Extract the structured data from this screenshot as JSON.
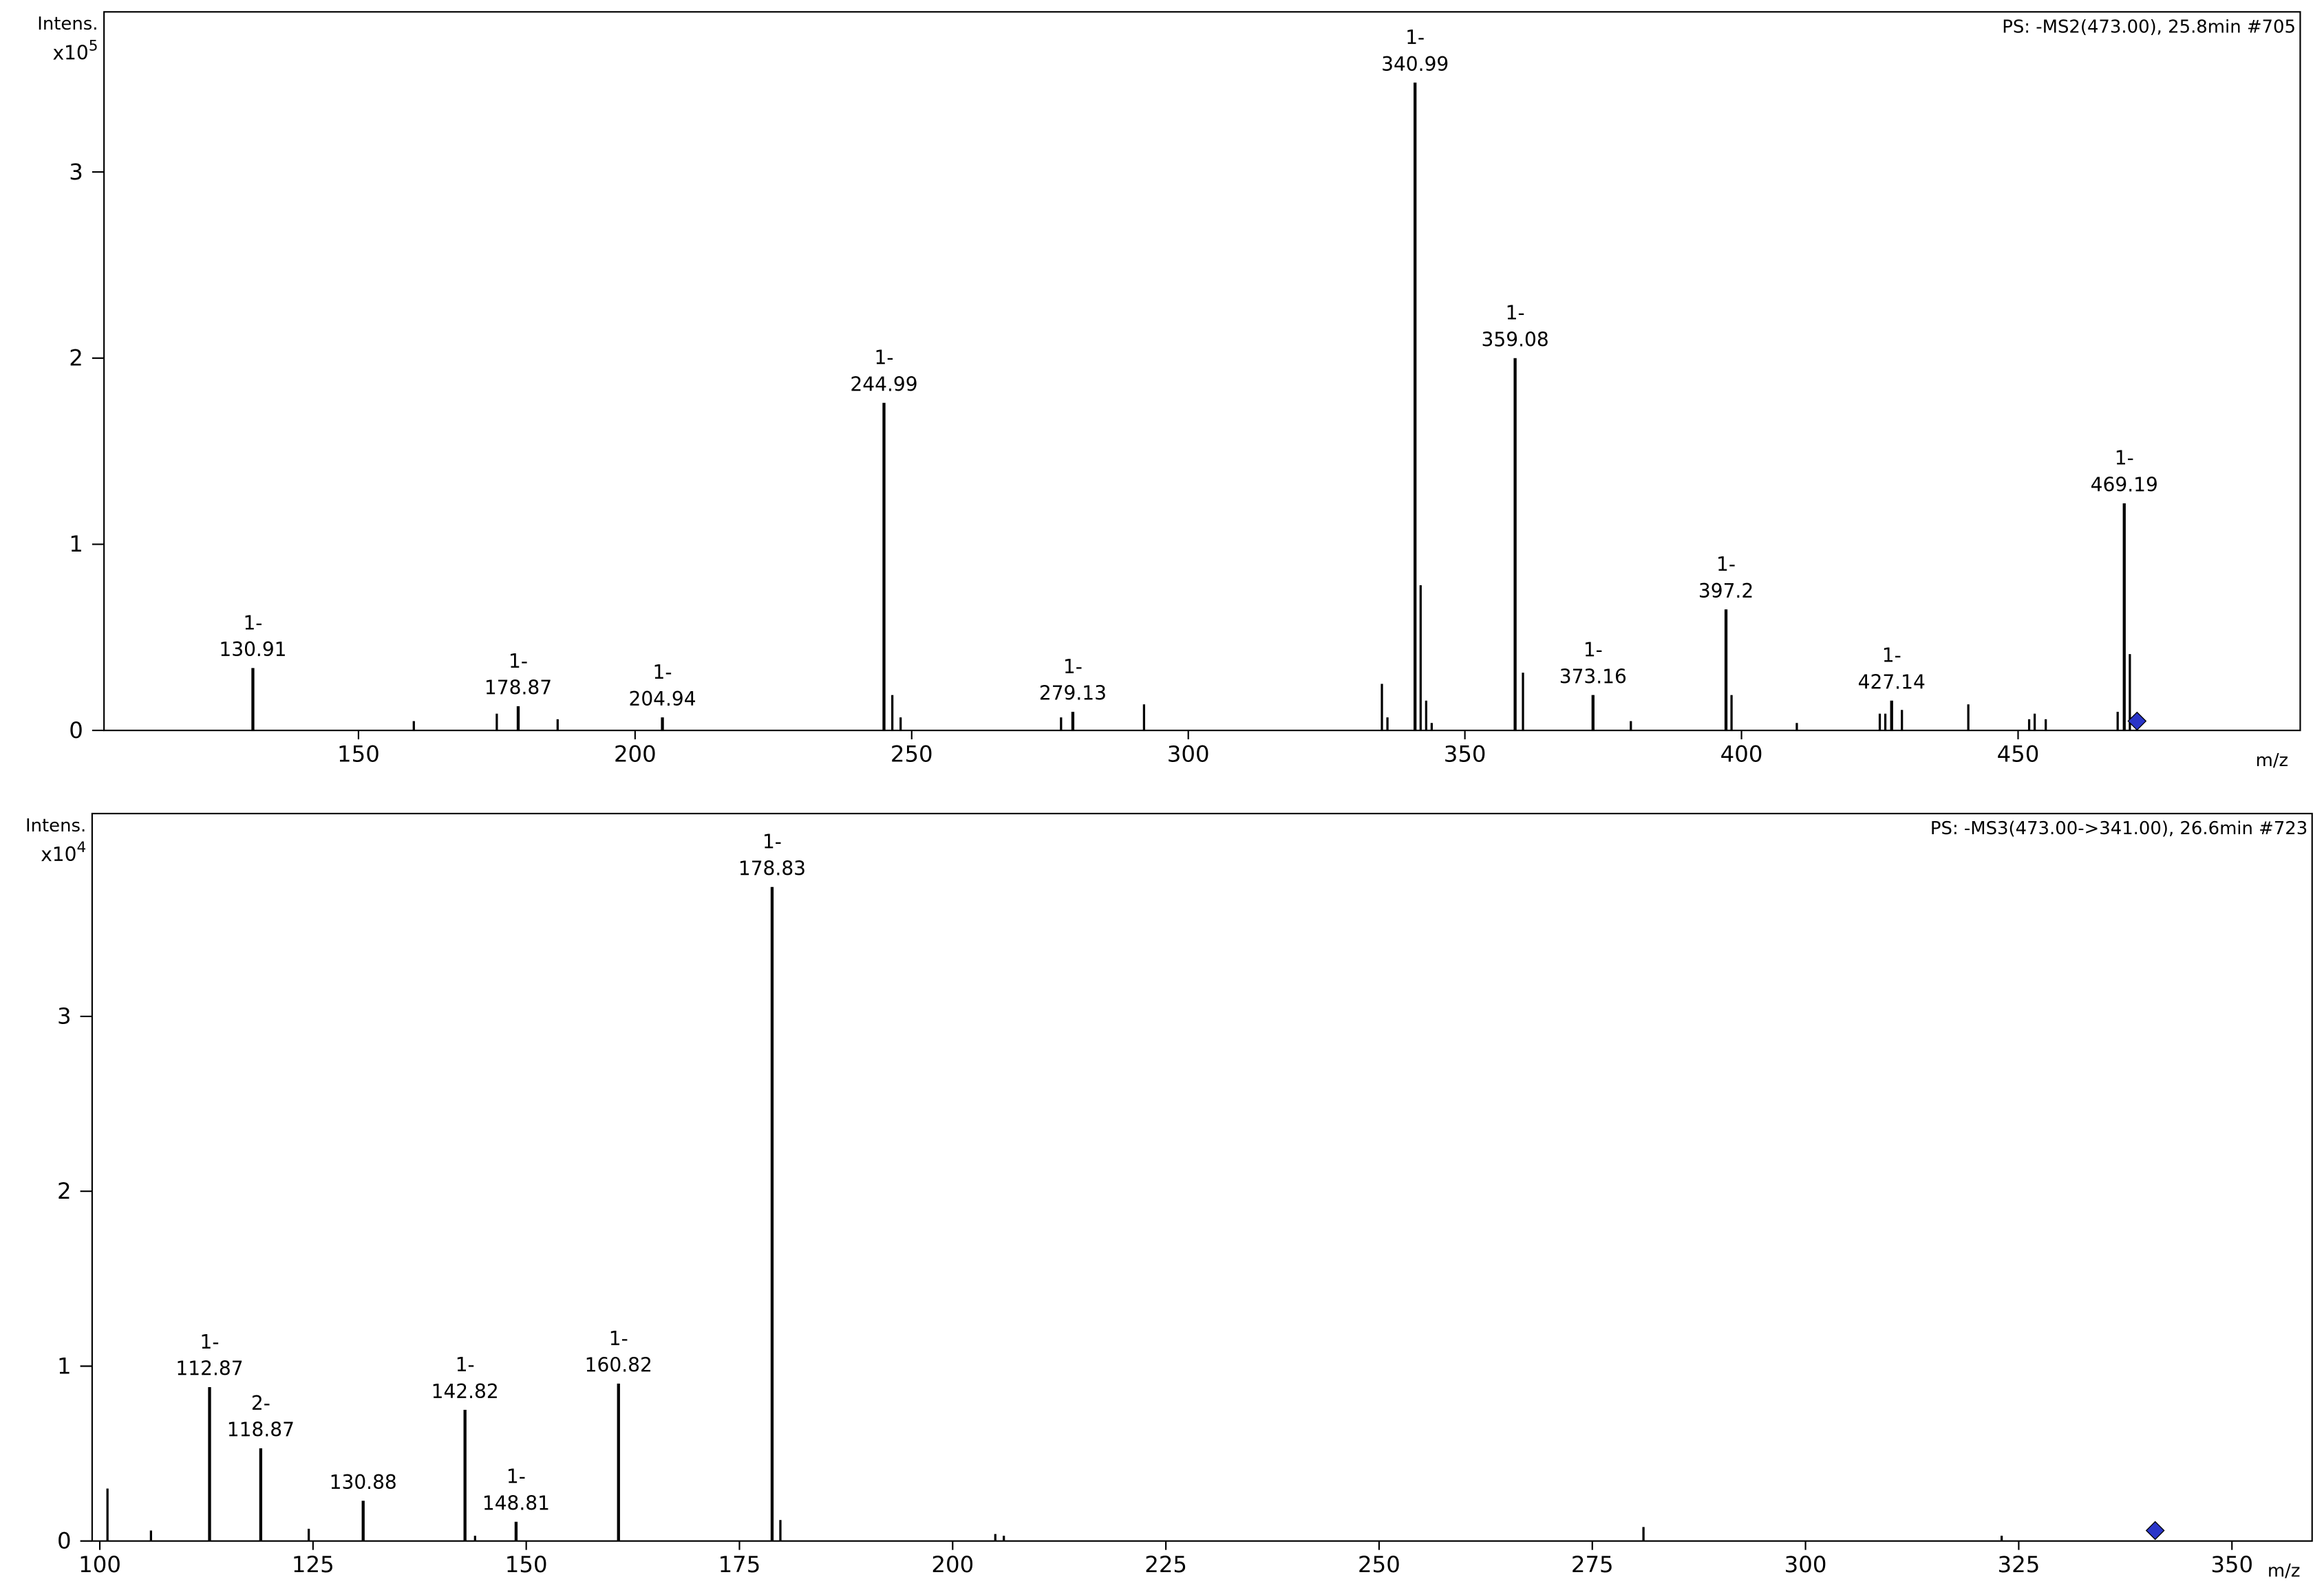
{
  "chart_data": [
    {
      "type": "stick",
      "corner_text": "PS: -MS2(473.00), 25.8min #705",
      "y_label": "Intens.",
      "y_scale": "x10",
      "y_exponent": "5",
      "x_label": "m/z",
      "color": "#000000",
      "x": [
        130.91,
        178.87,
        204.94,
        244.99,
        279.13,
        340.99,
        359.08,
        373.16,
        397.2,
        427.14,
        469.19
      ],
      "values": [
        0.335,
        0.13,
        0.07,
        1.76,
        0.1,
        3.48,
        2.0,
        0.19,
        0.65,
        0.16,
        1.22
      ],
      "charges": [
        "1-",
        "1-",
        "1-",
        "1-",
        "1-",
        "1-",
        "1-",
        "1-",
        "1-",
        "1-",
        "1-"
      ],
      "minor_peaks": {
        "x": [
          160,
          175,
          186,
          246.5,
          248,
          277,
          292,
          335,
          336,
          342,
          343,
          344,
          360.5,
          380,
          398.2,
          410,
          425,
          426,
          429,
          441,
          452,
          453,
          455,
          468,
          470.2
        ],
        "values": [
          0.05,
          0.09,
          0.06,
          0.19,
          0.07,
          0.07,
          0.14,
          0.25,
          0.07,
          0.78,
          0.16,
          0.04,
          0.31,
          0.05,
          0.19,
          0.04,
          0.09,
          0.09,
          0.11,
          0.14,
          0.06,
          0.09,
          0.06,
          0.1,
          0.41
        ]
      },
      "precursor": {
        "x": 471.5,
        "y": 0.05,
        "color": "#2a35c8"
      },
      "xlim": [
        104,
        501
      ],
      "ylim": [
        0,
        3.86
      ],
      "xticks": [
        150,
        200,
        250,
        300,
        350,
        400,
        450
      ],
      "yticks": [
        0,
        1,
        2,
        3
      ]
    },
    {
      "type": "stick",
      "corner_text": "PS: -MS3(473.00->341.00), 26.6min #723",
      "y_label": "Intens.",
      "y_scale": "x10",
      "y_exponent": "4",
      "x_label": "m/z",
      "color": "#000000",
      "x": [
        112.87,
        118.87,
        130.88,
        142.82,
        148.81,
        160.82,
        178.83
      ],
      "values": [
        0.88,
        0.53,
        0.23,
        0.75,
        0.11,
        0.9,
        3.74
      ],
      "charges": [
        "1-",
        "2-",
        null,
        "1-",
        "1-",
        "1-",
        "1-"
      ],
      "minor_peaks": {
        "x": [
          100.9,
          106,
          124.5,
          144,
          179.8,
          205,
          206,
          281,
          323
        ],
        "values": [
          0.3,
          0.06,
          0.07,
          0.03,
          0.12,
          0.04,
          0.03,
          0.08,
          0.03
        ]
      },
      "precursor": {
        "x": 341,
        "y": 0.06,
        "color": "#2a35c8"
      },
      "xlim": [
        99.1,
        359.4
      ],
      "ylim": [
        0,
        4.16
      ],
      "xticks": [
        100,
        125,
        150,
        175,
        200,
        225,
        250,
        275,
        300,
        325,
        350
      ],
      "yticks": [
        0,
        1,
        2,
        3
      ]
    }
  ]
}
